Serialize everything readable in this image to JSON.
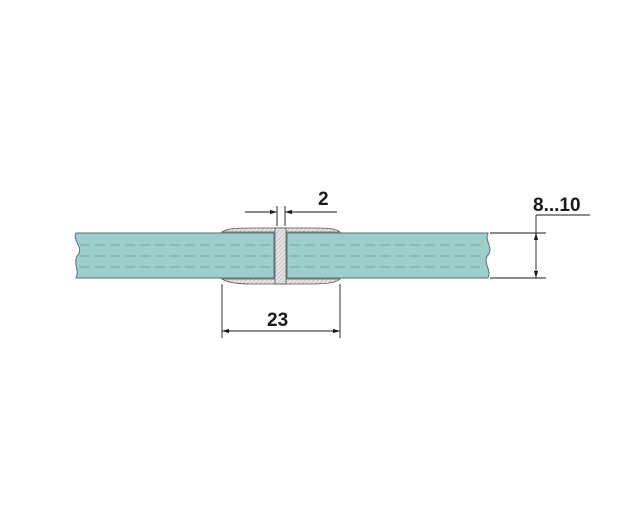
{
  "dimensions": {
    "gap": "2",
    "profile_width": "23",
    "glass_thickness": "8...10"
  },
  "colors": {
    "glass": "#9ccfcb",
    "glass_edge": "#5a6f6e",
    "profile": "#d8d8d8",
    "dimension_line": "#1a1a1a"
  }
}
